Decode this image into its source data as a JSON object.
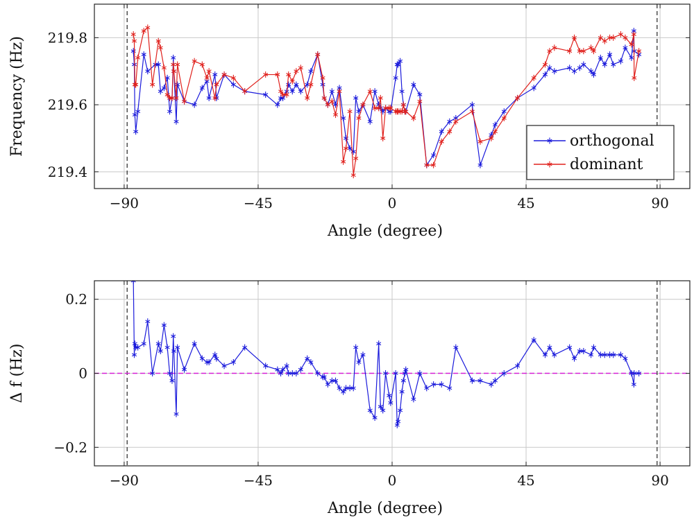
{
  "chart_data": [
    {
      "type": "line",
      "ylabel": "Frequency (Hz)",
      "xlabel": "Angle (degree)",
      "xlim": [
        -100,
        100
      ],
      "ylim": [
        219.35,
        219.9
      ],
      "xticks": [
        -90,
        -45,
        0,
        45,
        90
      ],
      "xtick_labels": [
        "−90",
        "−45",
        "0",
        "45",
        "90"
      ],
      "yticks": [
        219.4,
        219.6,
        219.8
      ],
      "ytick_labels": [
        "219.4",
        "219.6",
        "219.8"
      ],
      "grid": true,
      "legend_position": "bottom-right",
      "vlines": [
        -89,
        89
      ],
      "marker": "asterisk",
      "series": [
        {
          "name": "orthogonal",
          "color": "#1a1adb",
          "x": [
            -86.9,
            -86.6,
            -86.4,
            -86.1,
            -85.4,
            -83.4,
            -82.1,
            -79.5,
            -78.5,
            -77.8,
            -76.6,
            -75.5,
            -74.7,
            -73.9,
            -73.5,
            -73.3,
            -72.5,
            -72.1,
            -69.8,
            -66.4,
            -63.8,
            -62.2,
            -61.5,
            -59.5,
            -59.0,
            -56.4,
            -53.3,
            -49.5,
            -42.5,
            -38.5,
            -37.4,
            -36.7,
            -35.4,
            -34.8,
            -33.5,
            -32.2,
            -30.7,
            -28.5,
            -27.3,
            -25.0,
            -23.3,
            -22.8,
            -21.6,
            -20.2,
            -19.0,
            -17.7,
            -16.4,
            -15.5,
            -14.2,
            -13.0,
            -12.2,
            -11.2,
            -9.8,
            -7.4,
            -5.8,
            -4.5,
            -3.9,
            -3.1,
            -2.2,
            -1.0,
            -0.5,
            1.2,
            1.7,
            2.0,
            2.7,
            3.3,
            3.8,
            4.3,
            4.6,
            7.2,
            9.3,
            11.6,
            13.9,
            16.6,
            19.3,
            21.4,
            26.9,
            29.6,
            33.3,
            34.6,
            37.6,
            42.1,
            47.6,
            51.4,
            52.9,
            54.5,
            59.6,
            61.2,
            63.0,
            64.3,
            66.8,
            67.7,
            70.0,
            71.4,
            73.1,
            74.3,
            76.8,
            78.3,
            80.4,
            81.2,
            81.3,
            82.9
          ],
          "y": [
            219.76,
            219.72,
            219.57,
            219.52,
            219.58,
            219.75,
            219.7,
            219.72,
            219.72,
            219.64,
            219.65,
            219.68,
            219.58,
            219.62,
            219.74,
            219.7,
            219.55,
            219.66,
            219.61,
            219.6,
            219.65,
            219.67,
            219.62,
            219.69,
            219.62,
            219.69,
            219.66,
            219.64,
            219.63,
            219.6,
            219.62,
            219.62,
            219.64,
            219.66,
            219.64,
            219.66,
            219.64,
            219.66,
            219.7,
            219.75,
            219.66,
            219.62,
            219.6,
            219.64,
            219.6,
            219.65,
            219.56,
            219.5,
            219.47,
            219.46,
            219.62,
            219.58,
            219.6,
            219.55,
            219.64,
            219.6,
            219.59,
            219.58,
            219.59,
            219.58,
            219.58,
            219.68,
            219.72,
            219.72,
            219.73,
            219.64,
            219.6,
            219.58,
            219.58,
            219.66,
            219.63,
            219.42,
            219.45,
            219.52,
            219.55,
            219.56,
            219.6,
            219.42,
            219.51,
            219.54,
            219.58,
            219.62,
            219.65,
            219.69,
            219.71,
            219.7,
            219.71,
            219.7,
            219.71,
            219.72,
            219.7,
            219.69,
            219.74,
            219.72,
            219.75,
            219.72,
            219.73,
            219.77,
            219.74,
            219.82,
            219.76,
            219.75
          ]
        },
        {
          "name": "dominant",
          "color": "#e0201c",
          "x": [
            -86.9,
            -86.6,
            -86.4,
            -86.1,
            -85.4,
            -83.4,
            -82.1,
            -80.5,
            -78.5,
            -77.8,
            -76.6,
            -75.5,
            -74.7,
            -73.9,
            -73.5,
            -73.3,
            -72.5,
            -72.1,
            -69.8,
            -66.4,
            -63.8,
            -62.2,
            -61.5,
            -59.5,
            -59.0,
            -56.4,
            -53.3,
            -49.5,
            -42.5,
            -38.5,
            -37.4,
            -36.7,
            -35.4,
            -34.8,
            -33.5,
            -32.2,
            -30.7,
            -28.5,
            -27.3,
            -25.0,
            -23.3,
            -22.8,
            -21.6,
            -20.2,
            -19.0,
            -17.7,
            -16.4,
            -15.5,
            -14.2,
            -13.0,
            -12.2,
            -11.2,
            -9.8,
            -7.4,
            -5.8,
            -4.5,
            -3.9,
            -3.1,
            -2.2,
            -1.0,
            -0.5,
            1.2,
            1.7,
            2.0,
            2.7,
            3.3,
            3.8,
            4.3,
            4.6,
            7.2,
            9.3,
            11.6,
            13.9,
            16.6,
            19.3,
            21.4,
            26.9,
            29.6,
            33.3,
            34.6,
            37.6,
            42.1,
            47.6,
            51.4,
            52.9,
            54.5,
            59.6,
            61.2,
            63.0,
            64.3,
            66.8,
            67.7,
            70.0,
            71.4,
            73.1,
            74.3,
            76.8,
            78.3,
            80.4,
            81.2,
            81.3,
            82.9
          ],
          "y": [
            219.81,
            219.79,
            219.66,
            219.66,
            219.74,
            219.82,
            219.83,
            219.66,
            219.79,
            219.77,
            219.71,
            219.63,
            219.62,
            219.62,
            219.72,
            219.7,
            219.62,
            219.72,
            219.61,
            219.73,
            219.72,
            219.68,
            219.7,
            219.62,
            219.66,
            219.69,
            219.68,
            219.64,
            219.69,
            219.69,
            219.64,
            219.63,
            219.63,
            219.69,
            219.67,
            219.7,
            219.71,
            219.62,
            219.66,
            219.75,
            219.68,
            219.62,
            219.6,
            219.61,
            219.57,
            219.64,
            219.43,
            219.47,
            219.58,
            219.39,
            219.44,
            219.56,
            219.6,
            219.64,
            219.59,
            219.59,
            219.62,
            219.5,
            219.59,
            219.59,
            219.59,
            219.58,
            219.58,
            219.58,
            219.58,
            219.58,
            219.6,
            219.58,
            219.58,
            219.56,
            219.61,
            219.42,
            219.42,
            219.49,
            219.52,
            219.55,
            219.58,
            219.49,
            219.5,
            219.52,
            219.56,
            219.62,
            219.68,
            219.72,
            219.76,
            219.77,
            219.76,
            219.8,
            219.76,
            219.76,
            219.77,
            219.76,
            219.8,
            219.79,
            219.8,
            219.8,
            219.81,
            219.8,
            219.78,
            219.81,
            219.68,
            219.76
          ]
        }
      ]
    },
    {
      "type": "line",
      "ylabel": "Δ f (Hz)",
      "xlabel": "Angle (degree)",
      "xlim": [
        -100,
        100
      ],
      "ylim": [
        -0.25,
        0.25
      ],
      "xticks": [
        -90,
        -45,
        0,
        45,
        90
      ],
      "xtick_labels": [
        "−90",
        "−45",
        "0",
        "45",
        "90"
      ],
      "yticks": [
        -0.2,
        0,
        0.2
      ],
      "ytick_labels": [
        "−0.2",
        "0",
        "0.2"
      ],
      "grid": true,
      "vlines": [
        -89,
        89
      ],
      "hline": 0,
      "marker": "asterisk",
      "series": [
        {
          "color": "#1a1adb",
          "x": [
            -86.9,
            -86.6,
            -86.4,
            -86.1,
            -85.4,
            -83.4,
            -82.1,
            -80.5,
            -78.5,
            -77.8,
            -76.6,
            -75.5,
            -74.7,
            -73.9,
            -73.5,
            -73.3,
            -72.5,
            -72.1,
            -69.8,
            -66.4,
            -63.8,
            -62.2,
            -61.5,
            -59.5,
            -59.0,
            -56.4,
            -53.3,
            -49.5,
            -42.5,
            -38.5,
            -37.4,
            -36.7,
            -35.4,
            -34.8,
            -33.5,
            -32.2,
            -30.7,
            -28.5,
            -27.3,
            -25.0,
            -23.3,
            -22.8,
            -21.6,
            -20.2,
            -19.0,
            -17.7,
            -16.4,
            -15.5,
            -14.2,
            -13.0,
            -12.2,
            -11.2,
            -9.8,
            -7.4,
            -5.8,
            -4.5,
            -3.9,
            -3.1,
            -2.2,
            -1.0,
            -0.5,
            1.2,
            1.7,
            2.0,
            2.7,
            3.3,
            3.8,
            4.3,
            4.6,
            7.2,
            9.3,
            11.6,
            13.9,
            16.6,
            19.3,
            21.4,
            26.9,
            29.6,
            33.3,
            34.6,
            37.6,
            42.1,
            47.6,
            51.4,
            52.9,
            54.5,
            59.6,
            61.2,
            63.0,
            64.3,
            66.8,
            67.7,
            70.0,
            71.4,
            73.1,
            74.3,
            76.8,
            78.3,
            80.4,
            81.2,
            81.3,
            82.9
          ],
          "y": [
            0.25,
            0.05,
            0.08,
            0.07,
            0.07,
            0.08,
            0.14,
            0.0,
            0.08,
            0.06,
            0.13,
            0.07,
            0.0,
            -0.02,
            0.1,
            0.06,
            -0.11,
            0.07,
            0.01,
            0.08,
            0.04,
            0.03,
            0.03,
            0.05,
            0.04,
            0.02,
            0.03,
            0.07,
            0.02,
            0.01,
            0.0,
            0.01,
            0.02,
            0.0,
            0.0,
            0.0,
            0.01,
            0.04,
            0.03,
            0.0,
            -0.01,
            -0.01,
            -0.03,
            -0.02,
            -0.02,
            -0.04,
            -0.05,
            -0.04,
            -0.04,
            -0.04,
            0.07,
            0.03,
            0.05,
            -0.1,
            -0.12,
            0.08,
            -0.09,
            -0.1,
            0.0,
            -0.06,
            -0.08,
            0.0,
            -0.14,
            -0.13,
            -0.1,
            -0.05,
            -0.02,
            0.0,
            0.01,
            -0.07,
            0.0,
            -0.04,
            -0.03,
            -0.03,
            -0.04,
            0.07,
            -0.02,
            -0.02,
            -0.03,
            -0.02,
            0.0,
            0.02,
            0.09,
            0.05,
            0.07,
            0.05,
            0.07,
            0.04,
            0.06,
            0.06,
            0.05,
            0.07,
            0.05,
            0.05,
            0.05,
            0.05,
            0.05,
            0.04,
            0.0,
            -0.03,
            0.0,
            0.0
          ]
        }
      ]
    }
  ]
}
